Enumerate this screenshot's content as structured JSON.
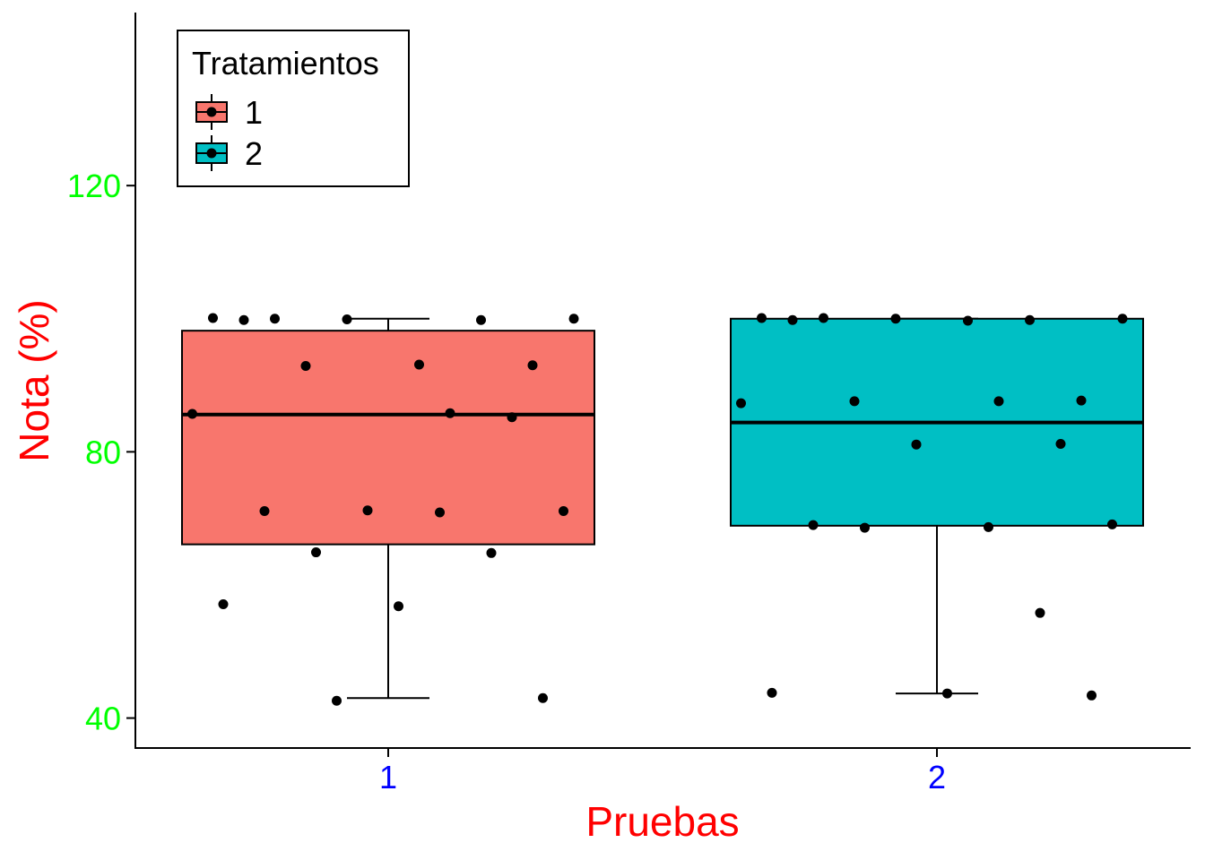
{
  "chart_data": {
    "type": "boxplot",
    "xlabel": "Pruebas",
    "ylabel": "Nota (%)",
    "categories": [
      "1",
      "2"
    ],
    "y_ticks": [
      40,
      80,
      120
    ],
    "ylim": [
      35.5,
      146
    ],
    "grid": false,
    "colors": {
      "axis_title": "#ff0000",
      "y_tick_labels": "#00ff00",
      "x_tick_labels": "#0000ff"
    },
    "legend": {
      "title": "Tratamientos",
      "position": "top-left",
      "entries": [
        {
          "label": "1",
          "color": "#f8766d"
        },
        {
          "label": "2",
          "color": "#00bfc4"
        }
      ]
    },
    "series": [
      {
        "name": "1",
        "category": "1",
        "color": "#f8766d",
        "box": {
          "min": 43,
          "q1": 66.1,
          "median": 85.6,
          "q3": 98.2,
          "max": 100
        },
        "points": [
          100.1,
          100,
          100,
          99.9,
          99.8,
          99.8,
          93.1,
          93,
          92.9,
          85.8,
          85.7,
          85.2,
          71.2,
          71.1,
          71.1,
          70.9,
          64.9,
          64.8,
          57.1,
          56.8,
          43,
          42.6
        ]
      },
      {
        "name": "2",
        "category": "2",
        "color": "#00bfc4",
        "box": {
          "min": 43.7,
          "q1": 68.9,
          "median": 84.4,
          "q3": 100,
          "max": 100
        },
        "points": [
          100.1,
          100.1,
          100,
          100,
          99.8,
          99.8,
          99.7,
          87.7,
          87.6,
          87.6,
          87.3,
          81.2,
          81.1,
          69.1,
          69,
          68.7,
          68.6,
          55.8,
          43.8,
          43.7,
          43.4
        ]
      }
    ]
  }
}
